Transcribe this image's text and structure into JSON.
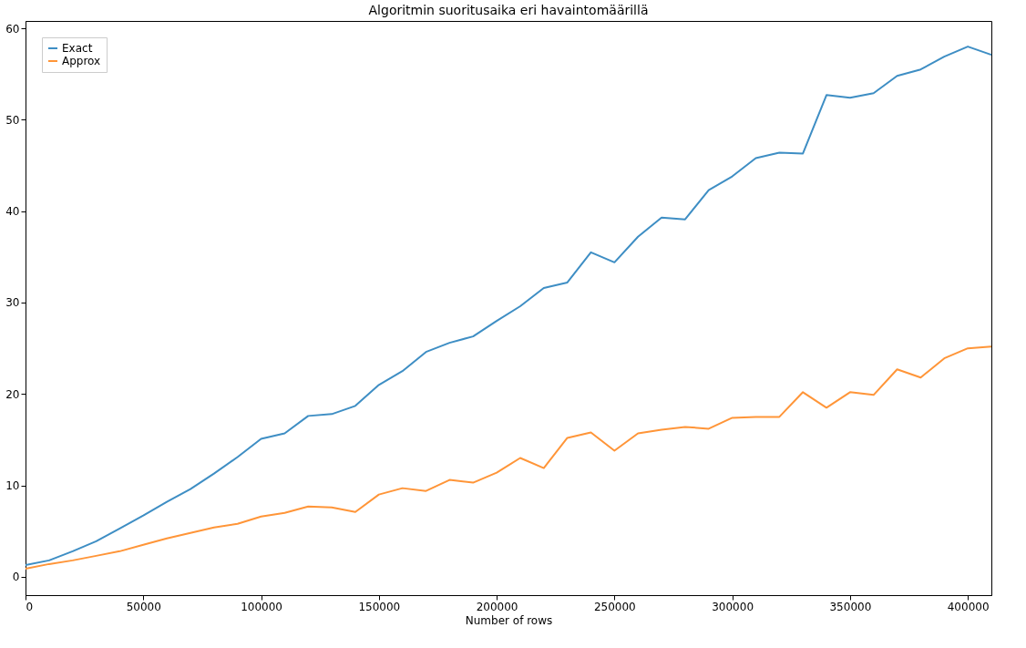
{
  "chart_data": {
    "type": "line",
    "title": "Algoritmin suoritusaika eri havaintomäärillä",
    "xlabel": "Number of rows",
    "x": [
      0,
      10000,
      20000,
      30000,
      40000,
      50000,
      60000,
      70000,
      80000,
      90000,
      100000,
      110000,
      120000,
      130000,
      140000,
      150000,
      160000,
      170000,
      180000,
      190000,
      200000,
      210000,
      220000,
      230000,
      240000,
      250000,
      260000,
      270000,
      280000,
      290000,
      300000,
      310000,
      320000,
      330000,
      340000,
      350000,
      360000,
      370000,
      380000,
      390000,
      400000,
      410000
    ],
    "series": [
      {
        "name": "Exact",
        "color": "#3e8ec4",
        "values": [
          1.3,
          1.8,
          2.8,
          3.9,
          5.3,
          6.7,
          8.2,
          9.6,
          11.3,
          13.1,
          15.1,
          15.7,
          17.6,
          17.8,
          18.7,
          21.0,
          22.5,
          24.6,
          25.6,
          26.3,
          28.0,
          29.6,
          31.6,
          32.2,
          35.5,
          34.4,
          37.2,
          39.3,
          39.1,
          42.3,
          43.8,
          45.8,
          46.4,
          46.3,
          52.7,
          52.4,
          52.9,
          54.8,
          55.5,
          56.9,
          58.0,
          57.1
        ]
      },
      {
        "name": "Approx",
        "color": "#ff9538",
        "values": [
          0.9,
          1.4,
          1.8,
          2.3,
          2.8,
          3.5,
          4.2,
          4.8,
          5.4,
          5.8,
          6.6,
          7.0,
          7.7,
          7.6,
          7.1,
          9.0,
          9.7,
          9.4,
          10.6,
          10.3,
          11.4,
          13.0,
          11.9,
          15.2,
          15.8,
          13.8,
          15.7,
          16.1,
          16.4,
          16.2,
          17.4,
          17.5,
          17.5,
          20.2,
          18.5,
          20.2,
          19.9,
          22.7,
          21.8,
          23.9,
          25.0,
          25.2
        ]
      }
    ],
    "xlim": [
      0,
      410000
    ],
    "xticks": [
      0,
      50000,
      100000,
      150000,
      200000,
      250000,
      300000,
      350000,
      400000
    ],
    "ylim": [
      -2,
      60.8
    ],
    "yticks": [
      0,
      10,
      20,
      30,
      40,
      50,
      60
    ],
    "grid": false,
    "legend": "top left",
    "marker": "none",
    "line_style": "solid"
  }
}
